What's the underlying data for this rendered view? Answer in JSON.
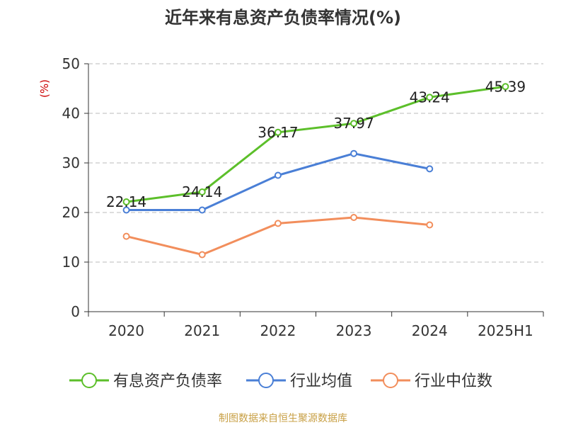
{
  "chart_data": {
    "type": "line",
    "title": "近年来有息资产负债率情况(%)",
    "ylabel": "(%)",
    "categories": [
      "2020",
      "2021",
      "2022",
      "2023",
      "2024",
      "2025H1"
    ],
    "ylim": [
      0,
      50
    ],
    "yticks": [
      0,
      10,
      20,
      30,
      40,
      50
    ],
    "grid": true,
    "legend_position": "bottom",
    "series": [
      {
        "name": "有息资产负债率",
        "color": "#5cbf2a",
        "values": [
          22.14,
          24.14,
          36.17,
          37.97,
          43.24,
          45.39
        ],
        "data_labels": [
          "22.14",
          "24.14",
          "36.17",
          "37.97",
          "43.24",
          "45.39"
        ]
      },
      {
        "name": "行业均值",
        "color": "#4a7fd6",
        "values": [
          20.5,
          20.5,
          27.5,
          31.9,
          28.8,
          null
        ]
      },
      {
        "name": "行业中位数",
        "color": "#f28e5c",
        "values": [
          15.2,
          11.5,
          17.8,
          19.0,
          17.5,
          null
        ]
      }
    ]
  },
  "footer": {
    "source": "制图数据来自恒生聚源数据库"
  },
  "colors": {
    "axis": "#333333",
    "grid": "#bbbbbb",
    "ylabel": "#cc0000",
    "source": "#c8a046"
  }
}
